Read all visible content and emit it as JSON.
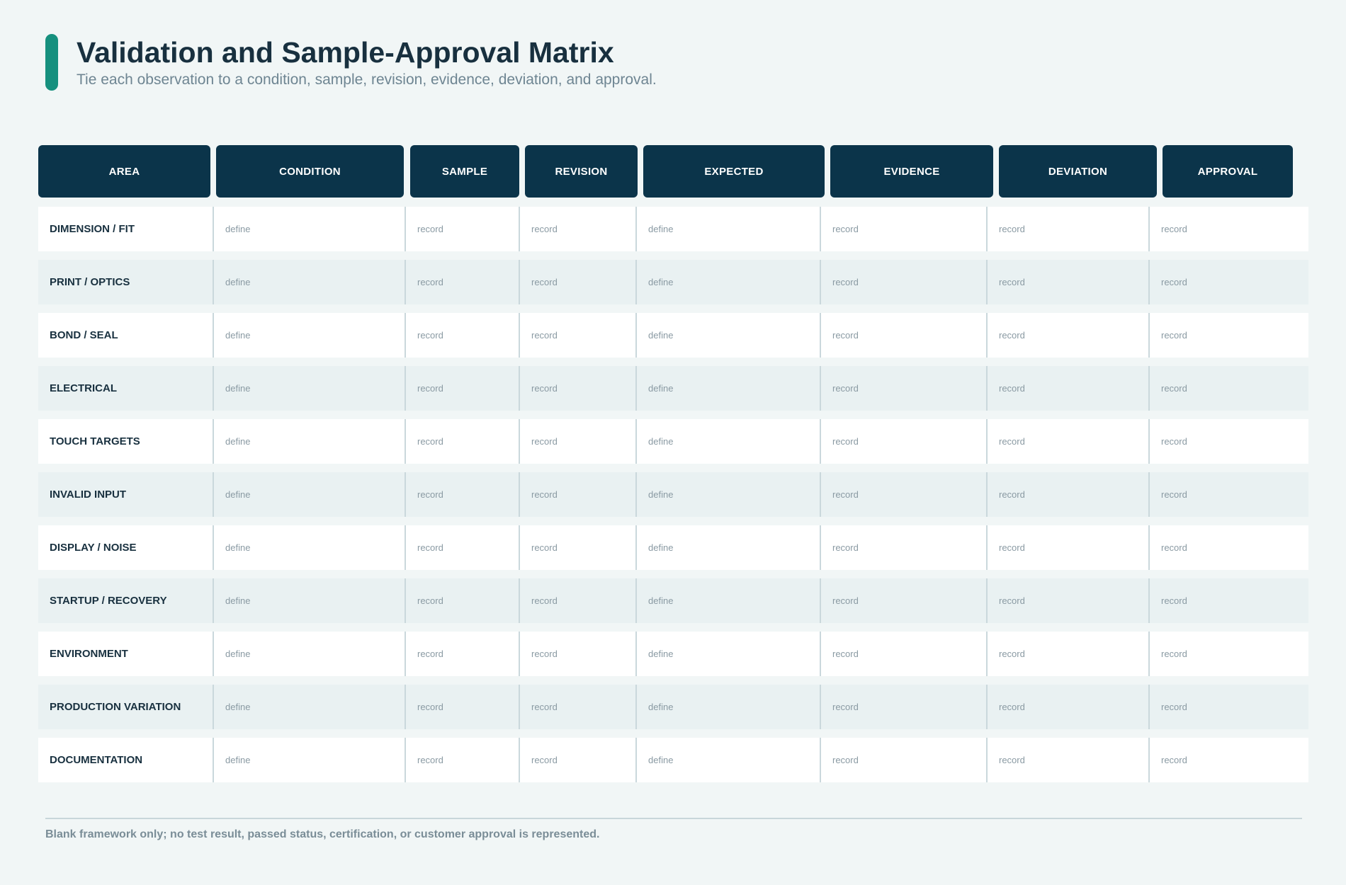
{
  "header": {
    "title": "Validation and Sample-Approval Matrix",
    "subtitle": "Tie each observation to a condition, sample, revision, evidence, deviation, and approval."
  },
  "colors": {
    "accent": "#16907e",
    "header_fill": "#0b344a",
    "row_alt": "#e9f1f2",
    "background": "#f1f6f6"
  },
  "columns": [
    "AREA",
    "CONDITION",
    "SAMPLE",
    "REVISION",
    "EXPECTED",
    "EVIDENCE",
    "DEVIATION",
    "APPROVAL"
  ],
  "rows": [
    {
      "area": "DIMENSION / FIT",
      "cells": [
        "define",
        "record",
        "record",
        "define",
        "record",
        "record",
        "record"
      ]
    },
    {
      "area": "PRINT / OPTICS",
      "cells": [
        "define",
        "record",
        "record",
        "define",
        "record",
        "record",
        "record"
      ]
    },
    {
      "area": "BOND / SEAL",
      "cells": [
        "define",
        "record",
        "record",
        "define",
        "record",
        "record",
        "record"
      ]
    },
    {
      "area": "ELECTRICAL",
      "cells": [
        "define",
        "record",
        "record",
        "define",
        "record",
        "record",
        "record"
      ]
    },
    {
      "area": "TOUCH TARGETS",
      "cells": [
        "define",
        "record",
        "record",
        "define",
        "record",
        "record",
        "record"
      ]
    },
    {
      "area": "INVALID INPUT",
      "cells": [
        "define",
        "record",
        "record",
        "define",
        "record",
        "record",
        "record"
      ]
    },
    {
      "area": "DISPLAY / NOISE",
      "cells": [
        "define",
        "record",
        "record",
        "define",
        "record",
        "record",
        "record"
      ]
    },
    {
      "area": "STARTUP / RECOVERY",
      "cells": [
        "define",
        "record",
        "record",
        "define",
        "record",
        "record",
        "record"
      ]
    },
    {
      "area": "ENVIRONMENT",
      "cells": [
        "define",
        "record",
        "record",
        "define",
        "record",
        "record",
        "record"
      ]
    },
    {
      "area": "PRODUCTION VARIATION",
      "cells": [
        "define",
        "record",
        "record",
        "define",
        "record",
        "record",
        "record"
      ]
    },
    {
      "area": "DOCUMENTATION",
      "cells": [
        "define",
        "record",
        "record",
        "define",
        "record",
        "record",
        "record"
      ]
    }
  ],
  "footer": {
    "note": "Blank framework only; no test result, passed status, certification, or customer approval is represented."
  }
}
